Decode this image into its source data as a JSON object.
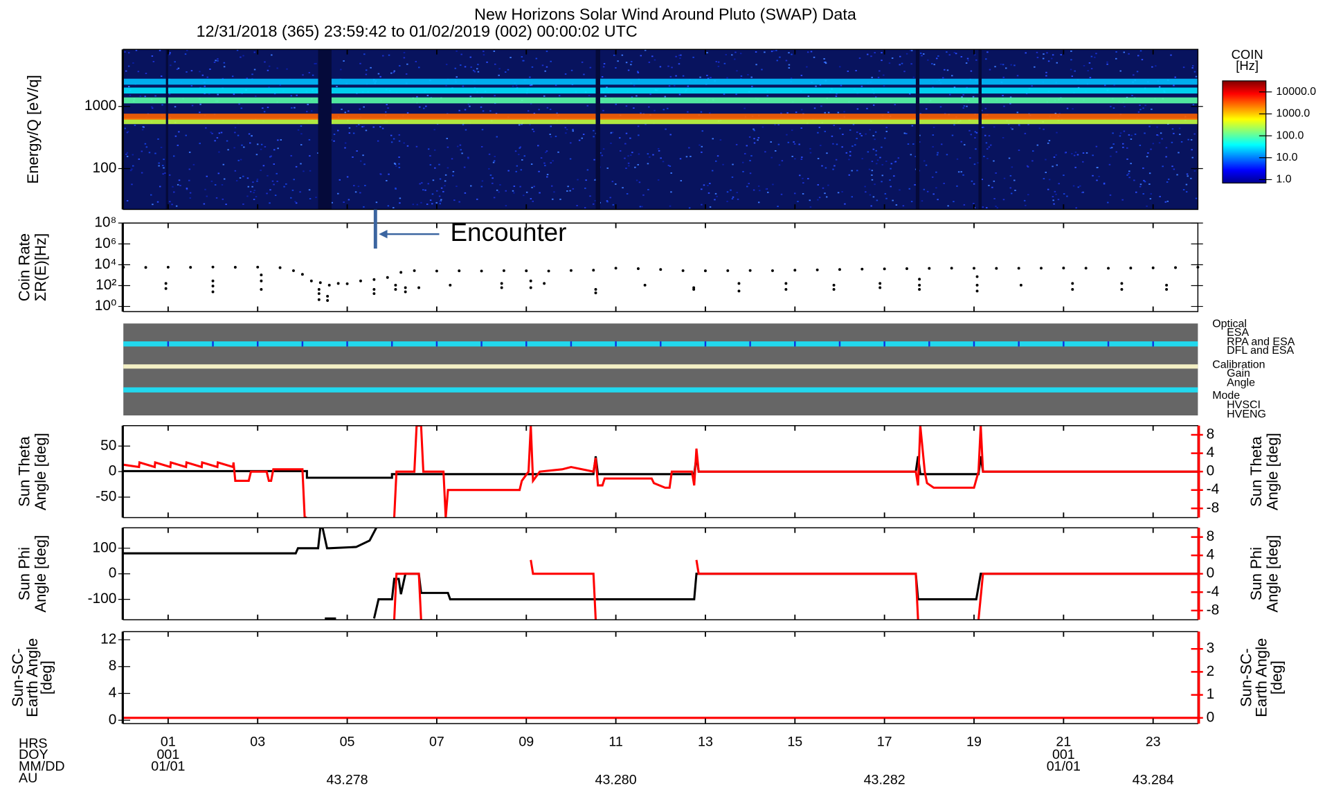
{
  "title": "New Horizons Solar Wind Around Pluto (SWAP) Data",
  "subtitle": "12/31/2018 (365) 23:59:42 to 01/02/2019 (002) 00:00:02 UTC",
  "time_axis": {
    "xlim": [
      0,
      24
    ],
    "row_labels": [
      "HRS",
      "DOY",
      "MM/DD",
      "AU"
    ],
    "xticks": [
      {
        "value": 1,
        "label": "01"
      },
      {
        "value": 3,
        "label": "03"
      },
      {
        "value": 5,
        "label": "05"
      },
      {
        "value": 7,
        "label": "07"
      },
      {
        "value": 9,
        "label": "09"
      },
      {
        "value": 11,
        "label": "11"
      },
      {
        "value": 13,
        "label": "13"
      },
      {
        "value": 15,
        "label": "15"
      },
      {
        "value": 17,
        "label": "17"
      },
      {
        "value": 19,
        "label": "19"
      },
      {
        "value": 21,
        "label": "21"
      },
      {
        "value": 23,
        "label": "23"
      }
    ],
    "doy_ticks": [
      {
        "value": 1,
        "label": "001"
      },
      {
        "value": 21,
        "label": "001"
      }
    ],
    "date_ticks": [
      {
        "value": 1,
        "label": "01/01"
      },
      {
        "value": 21,
        "label": "01/01"
      }
    ],
    "au_ticks": [
      {
        "value": 5,
        "label": "43.278"
      },
      {
        "value": 11,
        "label": "43.280"
      },
      {
        "value": 17,
        "label": "43.282"
      },
      {
        "value": 23,
        "label": "43.284"
      }
    ]
  },
  "annotation": {
    "text": "Encounter",
    "x": 5.63
  },
  "status_legend": [
    {
      "label": "Optical",
      "color": "#000000"
    },
    {
      "label": "ESA",
      "color": "#22d8ee"
    },
    {
      "label": "RPA and ESA",
      "color": "#ff2020"
    },
    {
      "label": "DFL and ESA",
      "color": "#2020e0"
    },
    {
      "label": "Calibration",
      "color": "#000000"
    },
    {
      "label": "Gain",
      "color": "#ff2020"
    },
    {
      "label": "Angle",
      "color": "#22d8ee"
    },
    {
      "label": "Mode",
      "color": "#000000"
    },
    {
      "label": "HVSCI",
      "color": "#22d8ee"
    },
    {
      "label": "HVENG",
      "color": "#ff2020"
    }
  ],
  "chart_data": [
    {
      "type": "heatmap",
      "ylabel": [
        "Energy/Q [eV/q]"
      ],
      "log_y": true,
      "ylim": [
        22,
        8280
      ],
      "yticks": [
        100,
        1000
      ],
      "bands": {
        "energies": [
          580,
          685,
          1250,
          1800,
          2500
        ],
        "rates": [
          300,
          3000,
          100,
          30,
          20
        ]
      },
      "gaps": [
        [
          0.95,
          1.0
        ],
        [
          4.35,
          4.65
        ],
        [
          10.55,
          10.65
        ],
        [
          17.7,
          17.78
        ],
        [
          19.1,
          19.17
        ]
      ],
      "colorbar": {
        "title": "COIN",
        "unit": "[Hz]",
        "log": true,
        "lim": [
          0.7,
          32000
        ],
        "ticks": [
          {
            "value": 10000,
            "label": "10000.0"
          },
          {
            "value": 1000,
            "label": "1000.0"
          },
          {
            "value": 100,
            "label": "100.0"
          },
          {
            "value": 10,
            "label": "10.0"
          },
          {
            "value": 1,
            "label": "1.0"
          }
        ]
      }
    },
    {
      "type": "scatter",
      "ylabel": [
        "Coin Rate",
        "ΣR(E)[Hz]"
      ],
      "log_y": true,
      "ylim": [
        0.32,
        100000000
      ],
      "yticks": [
        {
          "value": 1,
          "label": "10⁰"
        },
        {
          "value": 100,
          "label": "10²"
        },
        {
          "value": 10000,
          "label": "10⁴"
        },
        {
          "value": 1000000,
          "label": "10⁶"
        },
        {
          "value": 100000000,
          "label": "10⁸"
        }
      ],
      "series": [
        {
          "color": "#000000",
          "x": [
            0,
            0.5,
            1,
            1.5,
            2,
            2.5,
            3,
            3.5,
            3.8,
            4.0,
            4.2,
            4.4,
            4.6,
            4.8,
            5.0,
            5.3,
            5.6,
            5.9,
            6.2,
            6.5,
            7,
            7.5,
            8,
            8.5,
            9,
            9.5,
            10,
            10.5,
            11,
            11.5,
            12,
            12.5,
            13,
            13.5,
            14,
            14.5,
            15,
            15.5,
            16,
            16.5,
            17,
            17.5,
            18,
            18.5,
            19,
            19.5,
            20,
            20.5,
            21,
            21.5,
            22,
            22.5,
            23,
            23.5,
            24
          ],
          "values": [
            5700,
            5500,
            5800,
            5600,
            6000,
            5700,
            5900,
            5200,
            2700,
            1200,
            280,
            190,
            110,
            160,
            150,
            280,
            380,
            600,
            1850,
            2700,
            2500,
            2600,
            2500,
            2700,
            2600,
            2500,
            2800,
            3000,
            4700,
            4200,
            3500,
            2700,
            2600,
            2700,
            2800,
            2700,
            3000,
            3200,
            3500,
            3800,
            4000,
            4200,
            4500,
            4700,
            4600,
            4500,
            4600,
            4700,
            4800,
            4700,
            4600,
            4800,
            5000,
            5300,
            5800
          ]
        },
        {
          "color": "#000000",
          "x": [
            0.95,
            0.95,
            2.0,
            2.0,
            2.0,
            3.08,
            3.08,
            3.08,
            4.37,
            4.37,
            4.37,
            4.56,
            4.56,
            5.6,
            5.6,
            6.08,
            6.08,
            6.3,
            6.3,
            6.6,
            7.3,
            8.45,
            8.45,
            9.1,
            9.1,
            9.4,
            10.55,
            10.55,
            11.65,
            12.74,
            12.74,
            13.75,
            13.75,
            14.8,
            14.8,
            15.87,
            15.87,
            16.9,
            16.9,
            17.78,
            17.78,
            17.78,
            19.07,
            19.07,
            19.07,
            20.05,
            21.2,
            21.2,
            22.3,
            22.3,
            23.3,
            23.3
          ],
          "values": [
            160,
            52,
            280,
            90,
            25,
            1050,
            280,
            43,
            43,
            17,
            4.5,
            9.5,
            3.7,
            43,
            17,
            110,
            43,
            63,
            25,
            63,
            110,
            160,
            63,
            280,
            63,
            160,
            43,
            20,
            110,
            63,
            43,
            160,
            30,
            160,
            43,
            110,
            43,
            160,
            63,
            410,
            110,
            43,
            720,
            110,
            30,
            110,
            160,
            43,
            160,
            43,
            110,
            43
          ]
        }
      ]
    },
    {
      "type": "line",
      "ylabel": [
        "Sun Theta",
        "Angle [deg]"
      ],
      "y2label": [
        "Sun Theta",
        "Angle [deg]"
      ],
      "ylim": [
        -90,
        90
      ],
      "yticks": [
        -50,
        0,
        50
      ],
      "y2lim": [
        -10,
        10
      ],
      "y2ticks": [
        -8,
        -4,
        0,
        4,
        8
      ],
      "series": [
        {
          "color": "#000000",
          "x": [
            0,
            4.1,
            4.1,
            6.0,
            6.0,
            10.5,
            10.55,
            10.6,
            12.75,
            12.8,
            12.85,
            17.7,
            17.75,
            17.8,
            19.1,
            19.15,
            19.2,
            24
          ],
          "values": [
            1,
            1,
            -12,
            -12,
            -5,
            -5,
            30,
            -5,
            -5,
            30,
            0,
            0,
            30,
            -5,
            -5,
            30,
            0,
            0
          ]
        },
        {
          "color": "#ff0000",
          "axis": "y2",
          "x": [
            0,
            0.35,
            0.36,
            0.7,
            0.71,
            1.05,
            1.06,
            1.4,
            1.41,
            1.75,
            1.76,
            2.1,
            2.11,
            2.45,
            2.46,
            2.5,
            2.55,
            2.8,
            2.85,
            3.2,
            3.25,
            3.3,
            3.35,
            4.0,
            4.05,
            4.1,
            null,
            6.05,
            6.1,
            6.5,
            6.55,
            6.65,
            6.7,
            7.15,
            7.2,
            7.25,
            8.85,
            8.9,
            9.05,
            9.1,
            9.15,
            9.3,
            9.8,
            10.0,
            10.5,
            10.55,
            10.6,
            10.7,
            10.75,
            11.8,
            11.85,
            12.1,
            12.2,
            12.25,
            12.7,
            12.75,
            12.8,
            12.85,
            17.7,
            17.75,
            17.8,
            17.9,
            17.95,
            18.1,
            19.0,
            19.1,
            19.15,
            19.2,
            24
          ],
          "values": [
            1.5,
            1.0,
            2.0,
            1.0,
            2.0,
            1.0,
            2.0,
            1.0,
            2.0,
            1.0,
            2.0,
            1.0,
            2.0,
            1.0,
            2.0,
            -2,
            -2,
            -2,
            0,
            0,
            -2,
            -2,
            0.5,
            0.5,
            -10,
            -10,
            null,
            -10,
            0,
            0,
            10,
            10,
            0,
            0,
            -10,
            -4,
            -4,
            -2,
            0,
            10,
            -2,
            0,
            0.5,
            1,
            0,
            3,
            -3,
            -3,
            -1.5,
            -1.5,
            -2.5,
            -3.5,
            -3.5,
            0,
            0,
            -3,
            5,
            0,
            0,
            -3,
            10,
            0,
            -2.5,
            -3.5,
            -3.5,
            0,
            10,
            0,
            0
          ]
        }
      ]
    },
    {
      "type": "line",
      "ylabel": [
        "Sun Phi",
        "Angle [deg]"
      ],
      "y2label": [
        "Sun Phi",
        "Angle [deg]"
      ],
      "ylim": [
        -180,
        180
      ],
      "yticks": [
        -100,
        0,
        100
      ],
      "y2lim": [
        -10,
        10
      ],
      "y2ticks": [
        -8,
        -4,
        0,
        4,
        8
      ],
      "series": [
        {
          "color": "#000000",
          "x": [
            0,
            3.85,
            3.9,
            4.35,
            4.4,
            4.45,
            4.55,
            4.6,
            5.2,
            5.5,
            5.65,
            null,
            4.5,
            4.75,
            null,
            5.6,
            5.7,
            6.0,
            6.05,
            6.15,
            6.2,
            6.3,
            6.6,
            6.65,
            7.25,
            7.3,
            12.75,
            12.8,
            17.7,
            17.75,
            19.05,
            19.15,
            24
          ],
          "values": [
            80,
            80,
            100,
            100,
            180,
            180,
            100,
            100,
            105,
            130,
            180,
            null,
            -175,
            -175,
            null,
            -175,
            -100,
            -100,
            -20,
            -20,
            -80,
            0,
            0,
            -75,
            -75,
            -100,
            -100,
            0,
            0,
            -100,
            -100,
            0,
            0
          ]
        },
        {
          "color": "#ff0000",
          "axis": "y2",
          "x": [
            6.05,
            6.1,
            6.6,
            6.65,
            null,
            9.1,
            9.15,
            10.5,
            10.55,
            null,
            12.8,
            12.85,
            17.7,
            17.75,
            null,
            19.1,
            19.2,
            24
          ],
          "values": [
            -10,
            0,
            0,
            -10,
            null,
            3,
            0,
            0,
            -10,
            null,
            3,
            0,
            0,
            -10,
            null,
            -10,
            0,
            0
          ]
        }
      ]
    },
    {
      "type": "line",
      "ylabel": [
        "Sun-SC-",
        "Earth Angle",
        "[deg]"
      ],
      "y2label": [
        "Sun-SC-",
        "Earth Angle",
        "[deg]"
      ],
      "ylim": [
        -0.5,
        13.2
      ],
      "yticks": [
        0,
        4,
        8,
        12
      ],
      "y2lim": [
        -0.25,
        3.75
      ],
      "y2ticks": [
        0,
        1,
        2,
        3
      ],
      "series": [
        {
          "color": "#ff0000",
          "axis": "y2",
          "x": [
            0,
            24
          ],
          "values": [
            0,
            0
          ]
        }
      ]
    }
  ]
}
